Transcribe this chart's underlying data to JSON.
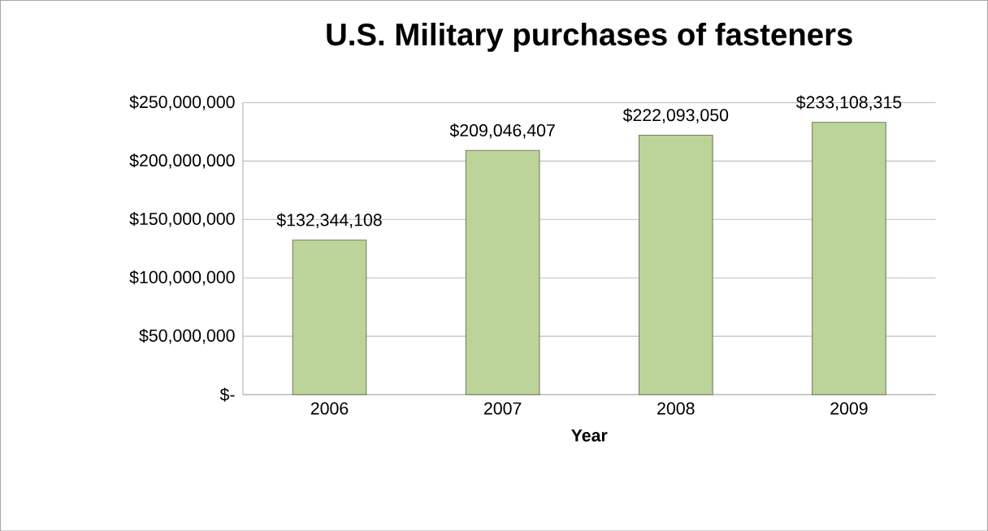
{
  "chart_data": {
    "type": "bar",
    "title": "U.S. Military purchases of fasteners",
    "xlabel": "Year",
    "categories": [
      "2006",
      "2007",
      "2008",
      "2009"
    ],
    "values": [
      132344108,
      209046407,
      222093050,
      233108315
    ],
    "value_labels": [
      "$132,344,108",
      "$209,046,407",
      "$222,093,050",
      "$233,108,315"
    ],
    "color": "#bcd39a",
    "ylim": [
      0,
      250000000
    ],
    "yticks": [
      {
        "value": 0,
        "label": "$-"
      },
      {
        "value": 50000000,
        "label": "$50,000,000"
      },
      {
        "value": 100000000,
        "label": "$100,000,000"
      },
      {
        "value": 150000000,
        "label": "$150,000,000"
      },
      {
        "value": 200000000,
        "label": "$200,000,000"
      },
      {
        "value": 250000000,
        "label": "$250,000,000"
      }
    ],
    "grid": "y"
  }
}
